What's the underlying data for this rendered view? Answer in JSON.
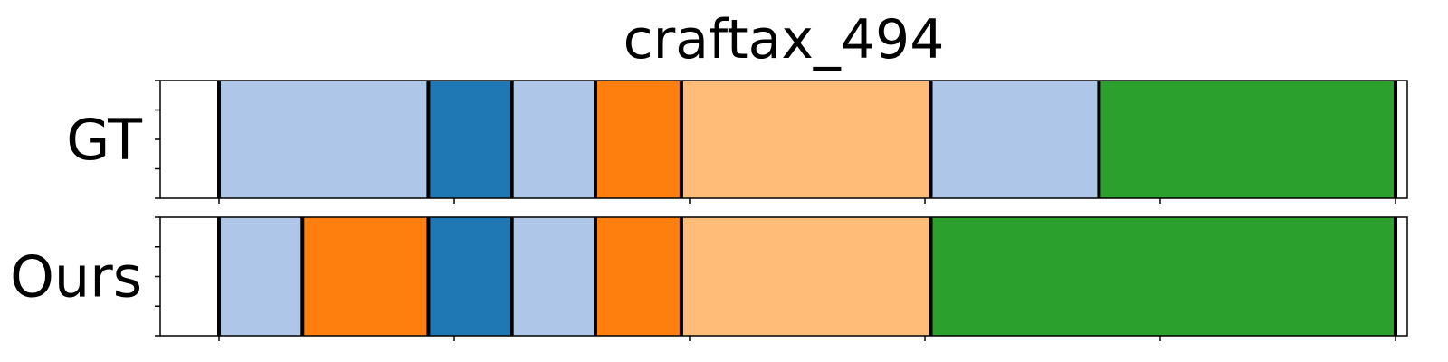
{
  "chart_data": {
    "type": "segmentation-timeline",
    "title": "craftax_494",
    "x_range": [
      -50,
      1010
    ],
    "x_ticks": [
      0,
      200,
      400,
      600,
      800,
      1000
    ],
    "colors": {
      "light_blue": "#aec7e8",
      "blue": "#1f77b4",
      "orange": "#ff7f0e",
      "light_orange": "#ffbb78",
      "green": "#2ca02c",
      "boundary": "#000000"
    },
    "rows": [
      {
        "label": "GT",
        "segments": [
          {
            "start": 0,
            "end": 178,
            "color": "#aec7e8"
          },
          {
            "start": 178,
            "end": 249,
            "color": "#1f77b4"
          },
          {
            "start": 249,
            "end": 320,
            "color": "#aec7e8"
          },
          {
            "start": 320,
            "end": 393,
            "color": "#ff7f0e"
          },
          {
            "start": 393,
            "end": 605,
            "color": "#ffbb78"
          },
          {
            "start": 605,
            "end": 748,
            "color": "#aec7e8"
          },
          {
            "start": 748,
            "end": 1000,
            "color": "#2ca02c"
          }
        ]
      },
      {
        "label": "Ours",
        "segments": [
          {
            "start": 0,
            "end": 71,
            "color": "#aec7e8"
          },
          {
            "start": 71,
            "end": 178,
            "color": "#ff7f0e"
          },
          {
            "start": 178,
            "end": 249,
            "color": "#1f77b4"
          },
          {
            "start": 249,
            "end": 320,
            "color": "#aec7e8"
          },
          {
            "start": 320,
            "end": 393,
            "color": "#ff7f0e"
          },
          {
            "start": 393,
            "end": 605,
            "color": "#ffbb78"
          },
          {
            "start": 605,
            "end": 1000,
            "color": "#2ca02c"
          }
        ]
      }
    ]
  }
}
